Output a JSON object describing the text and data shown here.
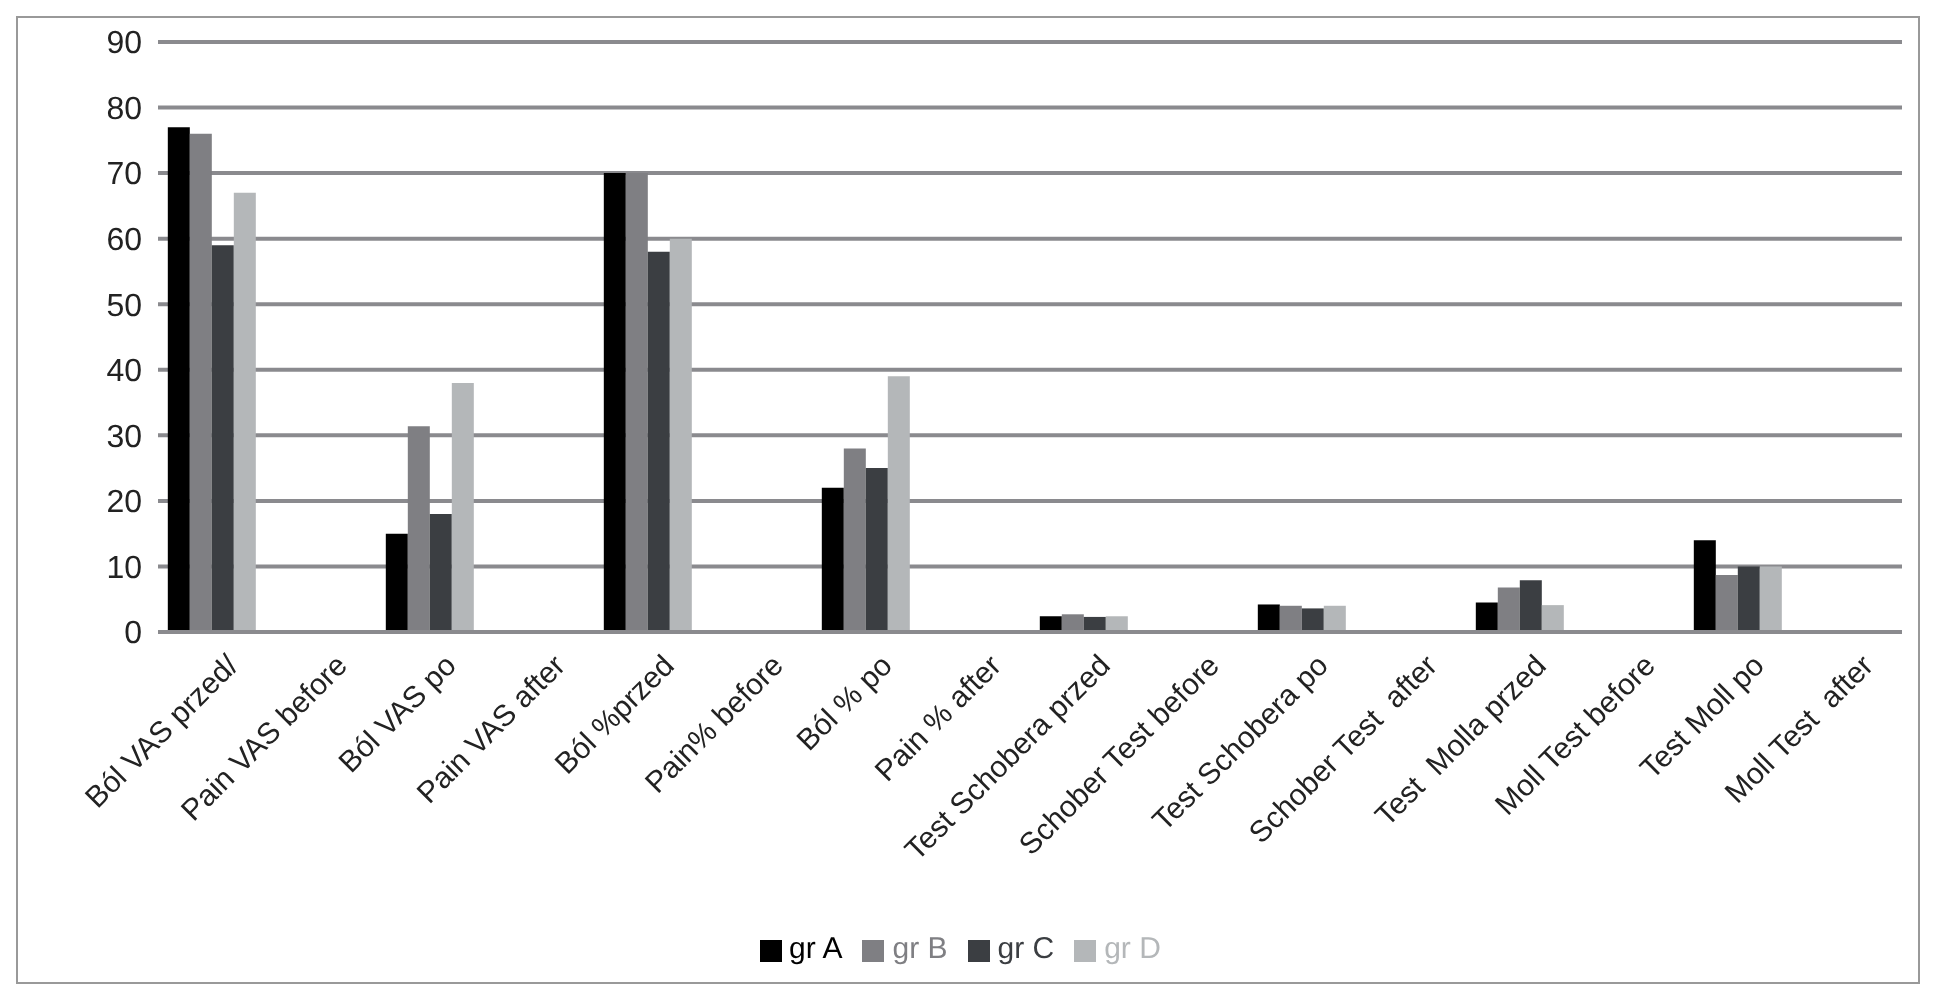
{
  "chart_data": {
    "type": "bar",
    "categories": [
      "Ból VAS przed/",
      "Pain VAS before",
      "Ból VAS po",
      "Pain VAS after",
      "Ból %przed",
      "Pain% before",
      "Ból % po",
      "Pain % after",
      "Test Schobera przed",
      "Schober Test before",
      "Test Schobera po",
      "Schober Test  after",
      "Test  Molla przed",
      "Moll Test before",
      "Test Moll po",
      "Moll Test  after"
    ],
    "series": [
      {
        "name": "gr A",
        "color": "#000000",
        "values": [
          77,
          null,
          15,
          null,
          70,
          null,
          22,
          null,
          2.4,
          null,
          4.2,
          null,
          4.5,
          null,
          14,
          null
        ]
      },
      {
        "name": "gr B",
        "color": "#7f7f83",
        "values": [
          76,
          null,
          31.4,
          null,
          70,
          null,
          28,
          null,
          2.7,
          null,
          4,
          null,
          6.8,
          null,
          8.7,
          null
        ]
      },
      {
        "name": "gr C",
        "color": "#3b3e42",
        "values": [
          59,
          null,
          18,
          null,
          58,
          null,
          25,
          null,
          2.3,
          null,
          3.6,
          null,
          7.9,
          null,
          10,
          null
        ]
      },
      {
        "name": "gr D",
        "color": "#b4b7b9",
        "values": [
          67,
          null,
          38,
          null,
          60,
          null,
          39,
          null,
          2.4,
          null,
          4,
          null,
          4.1,
          null,
          10,
          null
        ]
      }
    ],
    "ylim": [
      0,
      90
    ],
    "yticks": [
      0,
      10,
      20,
      30,
      40,
      50,
      60,
      70,
      80,
      90
    ],
    "grid": "y",
    "legend": "bottom"
  }
}
